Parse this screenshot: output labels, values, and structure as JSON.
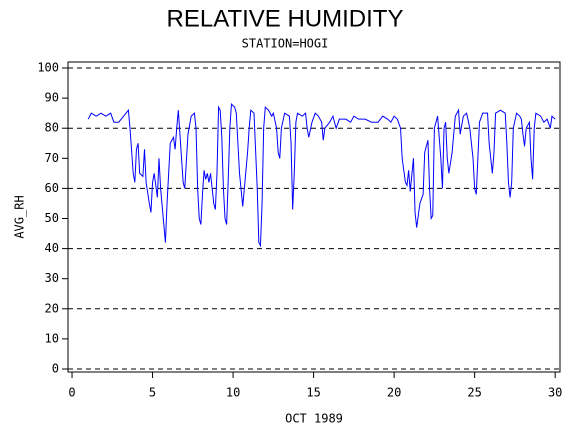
{
  "chart_data": {
    "type": "line",
    "title": "RELATIVE HUMIDITY",
    "subtitle": "STATION=HOGI",
    "y_label": "AVG_RH",
    "x_label": "OCT 1989",
    "xlim": [
      -0.25,
      30.3
    ],
    "xticks": [
      0,
      5,
      10,
      15,
      20,
      25,
      30
    ],
    "ylim": [
      -1,
      102
    ],
    "yticks": [
      0,
      10,
      20,
      30,
      40,
      50,
      60,
      70,
      80,
      90,
      100
    ],
    "grid": true,
    "x": [
      1.0,
      1.2,
      1.5,
      1.8,
      2.1,
      2.4,
      2.6,
      2.9,
      3.2,
      3.5,
      3.6,
      3.8,
      3.9,
      4.0,
      4.1,
      4.2,
      4.4,
      4.5,
      4.6,
      4.8,
      4.9,
      5.0,
      5.1,
      5.3,
      5.4,
      5.5,
      5.7,
      5.8,
      5.9,
      6.0,
      6.1,
      6.3,
      6.4,
      6.5,
      6.6,
      6.8,
      6.9,
      7.0,
      7.2,
      7.4,
      7.6,
      7.7,
      7.8,
      7.9,
      8.0,
      8.1,
      8.2,
      8.3,
      8.4,
      8.5,
      8.6,
      8.7,
      8.8,
      8.9,
      9.0,
      9.1,
      9.2,
      9.3,
      9.4,
      9.5,
      9.6,
      9.7,
      9.8,
      9.9,
      10.1,
      10.2,
      10.4,
      10.6,
      10.7,
      10.9,
      11.0,
      11.1,
      11.3,
      11.5,
      11.6,
      11.7,
      11.8,
      11.9,
      12.0,
      12.2,
      12.4,
      12.5,
      12.7,
      12.8,
      12.9,
      13.0,
      13.2,
      13.5,
      13.6,
      13.7,
      13.8,
      13.9,
      14.0,
      14.3,
      14.5,
      14.6,
      14.7,
      14.9,
      15.1,
      15.3,
      15.5,
      15.6,
      15.7,
      16.0,
      16.2,
      16.4,
      16.6,
      17.0,
      17.3,
      17.5,
      17.8,
      18.2,
      18.6,
      19.0,
      19.3,
      19.6,
      19.8,
      20.0,
      20.2,
      20.4,
      20.5,
      20.6,
      20.7,
      20.8,
      20.9,
      21.0,
      21.2,
      21.3,
      21.4,
      21.6,
      21.8,
      21.9,
      22.1,
      22.2,
      22.3,
      22.4,
      22.5,
      22.7,
      22.9,
      23.0,
      23.1,
      23.2,
      23.3,
      23.4,
      23.6,
      23.8,
      24.0,
      24.1,
      24.3,
      24.5,
      24.7,
      24.9,
      25.0,
      25.1,
      25.2,
      25.3,
      25.5,
      25.8,
      25.9,
      26.1,
      26.2,
      26.3,
      26.6,
      26.9,
      27.0,
      27.1,
      27.2,
      27.3,
      27.4,
      27.6,
      27.8,
      27.9,
      28.0,
      28.1,
      28.2,
      28.4,
      28.5,
      28.6,
      28.7,
      28.8,
      29.1,
      29.3,
      29.5,
      29.7,
      29.8,
      30.0
    ],
    "series": [
      {
        "name": "AVG_RH",
        "color": "#0000ff",
        "values": [
          83,
          85,
          84,
          85,
          84,
          85,
          82,
          82,
          84,
          86,
          80,
          65,
          62,
          73,
          75,
          65,
          64,
          73,
          62,
          55,
          52,
          62,
          65,
          57,
          70,
          60,
          48,
          42,
          55,
          65,
          75,
          77,
          73,
          80,
          86,
          70,
          62,
          60,
          78,
          84,
          85,
          80,
          60,
          50,
          48,
          58,
          66,
          63,
          65,
          62,
          65,
          60,
          55,
          53,
          65,
          87,
          86,
          77,
          60,
          50,
          48,
          63,
          80,
          88,
          87,
          85,
          65,
          54,
          60,
          72,
          80,
          86,
          85,
          60,
          42,
          41,
          55,
          80,
          87,
          86,
          84,
          85,
          80,
          72,
          70,
          80,
          85,
          84,
          75,
          53,
          65,
          82,
          85,
          84,
          85,
          80,
          77,
          82,
          85,
          84,
          82,
          76,
          80,
          82,
          84,
          80,
          83,
          83,
          82,
          84,
          83,
          83,
          82,
          82,
          84,
          83,
          82,
          84,
          83,
          80,
          70,
          66,
          62,
          61,
          66,
          59,
          70,
          52,
          47,
          55,
          58,
          72,
          76,
          60,
          50,
          51,
          80,
          84,
          70,
          60,
          80,
          82,
          70,
          65,
          72,
          84,
          86,
          78,
          84,
          85,
          80,
          70,
          60,
          58,
          70,
          82,
          85,
          85,
          75,
          65,
          72,
          85,
          86,
          85,
          75,
          62,
          57,
          62,
          80,
          85,
          84,
          83,
          78,
          74,
          80,
          82,
          70,
          63,
          80,
          85,
          84,
          82,
          83,
          80,
          84,
          83
        ]
      }
    ]
  }
}
